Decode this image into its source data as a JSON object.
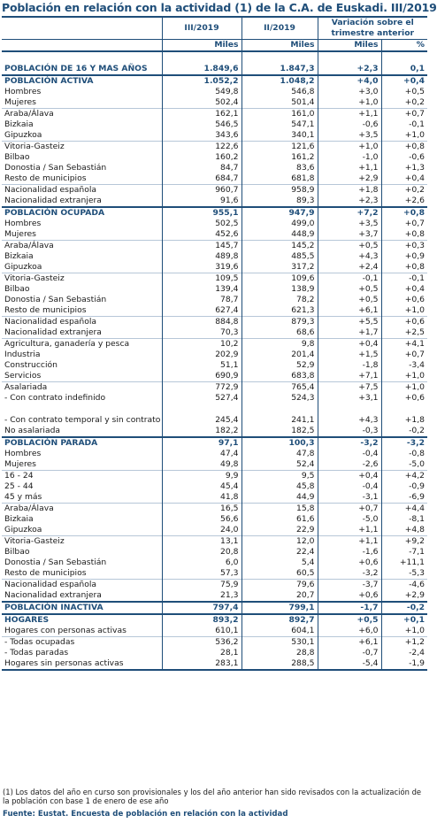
{
  "title": "Población en relación con la actividad (1) de la C.A. de Euskadi. III/2019",
  "header": {
    "col1": "III/2019",
    "col2": "II/2019",
    "col3": "Variación sobre el trimestre anterior",
    "unit1": "Miles",
    "unit2": "Miles",
    "unit3": "Miles",
    "unit4": "%"
  },
  "rows": [
    {
      "label": "POBLACIÓN DE 16 Y MAS AÑOS",
      "v1": "1.849,6",
      "v2": "1.847,3",
      "v3": "+2,3",
      "v4": "0,1"
    },
    {
      "label": "POBLACIÓN ACTIVA",
      "v1": "1.052,2",
      "v2": "1.048,2",
      "v3": "+4,0",
      "v4": "+0,4"
    },
    {
      "label": "Hombres",
      "v1": "549,8",
      "v2": "546,8",
      "v3": "+3,0",
      "v4": "+0,5"
    },
    {
      "label": "Mujeres",
      "v1": "502,4",
      "v2": "501,4",
      "v3": "+1,0",
      "v4": "+0,2"
    },
    {
      "label": "Araba/Álava",
      "v1": "162,1",
      "v2": "161,0",
      "v3": "+1,1",
      "v4": "+0,7"
    },
    {
      "label": "Bizkaia",
      "v1": "546,5",
      "v2": "547,1",
      "v3": "-0,6",
      "v4": "-0,1"
    },
    {
      "label": "Gipuzkoa",
      "v1": "343,6",
      "v2": "340,1",
      "v3": "+3,5",
      "v4": "+1,0"
    },
    {
      "label": "Vitoria-Gasteiz",
      "v1": "122,6",
      "v2": "121,6",
      "v3": "+1,0",
      "v4": "+0,8"
    },
    {
      "label": "Bilbao",
      "v1": "160,2",
      "v2": "161,2",
      "v3": "-1,0",
      "v4": "-0,6"
    },
    {
      "label": "Donostia / San Sebastián",
      "v1": "84,7",
      "v2": "83,6",
      "v3": "+1,1",
      "v4": "+1,3"
    },
    {
      "label": "Resto de municipios",
      "v1": "684,7",
      "v2": "681,8",
      "v3": "+2,9",
      "v4": "+0,4"
    },
    {
      "label": "Nacionalidad española",
      "v1": "960,7",
      "v2": "958,9",
      "v3": "+1,8",
      "v4": "+0,2"
    },
    {
      "label": "Nacionalidad extranjera",
      "v1": "91,6",
      "v2": "89,3",
      "v3": "+2,3",
      "v4": "+2,6"
    },
    {
      "label": "POBLACIÓN OCUPADA",
      "v1": "955,1",
      "v2": "947,9",
      "v3": "+7,2",
      "v4": "+0,8"
    },
    {
      "label": "Hombres",
      "v1": "502,5",
      "v2": "499,0",
      "v3": "+3,5",
      "v4": "+0,7"
    },
    {
      "label": "Mujeres",
      "v1": "452,6",
      "v2": "448,9",
      "v3": "+3,7",
      "v4": "+0,8"
    },
    {
      "label": "Araba/Álava",
      "v1": "145,7",
      "v2": "145,2",
      "v3": "+0,5",
      "v4": "+0,3"
    },
    {
      "label": "Bizkaia",
      "v1": "489,8",
      "v2": "485,5",
      "v3": "+4,3",
      "v4": "+0,9"
    },
    {
      "label": "Gipuzkoa",
      "v1": "319,6",
      "v2": "317,2",
      "v3": "+2,4",
      "v4": "+0,8"
    },
    {
      "label": "Vitoria-Gasteiz",
      "v1": "109,5",
      "v2": "109,6",
      "v3": "-0,1",
      "v4": "-0,1"
    },
    {
      "label": "Bilbao",
      "v1": "139,4",
      "v2": "138,9",
      "v3": "+0,5",
      "v4": "+0,4"
    },
    {
      "label": "Donostia / San Sebastián",
      "v1": "78,7",
      "v2": "78,2",
      "v3": "+0,5",
      "v4": "+0,6"
    },
    {
      "label": "Resto de municipios",
      "v1": "627,4",
      "v2": "621,3",
      "v3": "+6,1",
      "v4": "+1,0"
    },
    {
      "label": "Nacionalidad española",
      "v1": "884,8",
      "v2": "879,3",
      "v3": "+5,5",
      "v4": "+0,6"
    },
    {
      "label": "Nacionalidad extranjera",
      "v1": "70,3",
      "v2": "68,6",
      "v3": "+1,7",
      "v4": "+2,5"
    },
    {
      "label": "Agricultura, ganadería y pesca",
      "v1": "10,2",
      "v2": "9,8",
      "v3": "+0,4",
      "v4": "+4,1"
    },
    {
      "label": "Industria",
      "v1": "202,9",
      "v2": "201,4",
      "v3": "+1,5",
      "v4": "+0,7"
    },
    {
      "label": "Construcción",
      "v1": "51,1",
      "v2": "52,9",
      "v3": "-1,8",
      "v4": "-3,4"
    },
    {
      "label": "Servicios",
      "v1": "690,9",
      "v2": "683,8",
      "v3": "+7,1",
      "v4": "+1,0"
    },
    {
      "label": "Asalariada",
      "v1": "772,9",
      "v2": "765,4",
      "v3": "+7,5",
      "v4": "+1,0"
    },
    {
      "label": "- Con contrato indefinido",
      "v1": "527,4",
      "v2": "524,3",
      "v3": "+3,1",
      "v4": "+0,6"
    },
    {
      "label": "- Con contrato temporal y sin contrato",
      "v1": "245,4",
      "v2": "241,1",
      "v3": "+4,3",
      "v4": "+1,8"
    },
    {
      "label": "No asalariada",
      "v1": "182,2",
      "v2": "182,5",
      "v3": "-0,3",
      "v4": "-0,2"
    },
    {
      "label": "POBLACIÓN PARADA",
      "v1": "97,1",
      "v2": "100,3",
      "v3": "-3,2",
      "v4": "-3,2"
    },
    {
      "label": "Hombres",
      "v1": "47,4",
      "v2": "47,8",
      "v3": "-0,4",
      "v4": "-0,8"
    },
    {
      "label": "Mujeres",
      "v1": "49,8",
      "v2": "52,4",
      "v3": "-2,6",
      "v4": "-5,0"
    },
    {
      "label": "16 - 24",
      "v1": "9,9",
      "v2": "9,5",
      "v3": "+0,4",
      "v4": "+4,2"
    },
    {
      "label": "25 - 44",
      "v1": "45,4",
      "v2": "45,8",
      "v3": "-0,4",
      "v4": "-0,9"
    },
    {
      "label": "45 y más",
      "v1": "41,8",
      "v2": "44,9",
      "v3": "-3,1",
      "v4": "-6,9"
    },
    {
      "label": "Araba/Álava",
      "v1": "16,5",
      "v2": "15,8",
      "v3": "+0,7",
      "v4": "+4,4"
    },
    {
      "label": "Bizkaia",
      "v1": "56,6",
      "v2": "61,6",
      "v3": "-5,0",
      "v4": "-8,1"
    },
    {
      "label": "Gipuzkoa",
      "v1": "24,0",
      "v2": "22,9",
      "v3": "+1,1",
      "v4": "+4,8"
    },
    {
      "label": "Vitoria-Gasteiz",
      "v1": "13,1",
      "v2": "12,0",
      "v3": "+1,1",
      "v4": "+9,2"
    },
    {
      "label": "Bilbao",
      "v1": "20,8",
      "v2": "22,4",
      "v3": "-1,6",
      "v4": "-7,1"
    },
    {
      "label": "Donostia / San Sebastián",
      "v1": "6,0",
      "v2": "5,4",
      "v3": "+0,6",
      "v4": "+11,1"
    },
    {
      "label": "Resto de municipios",
      "v1": "57,3",
      "v2": "60,5",
      "v3": "-3,2",
      "v4": "-5,3"
    },
    {
      "label": "Nacionalidad española",
      "v1": "75,9",
      "v2": "79,6",
      "v3": "-3,7",
      "v4": "-4,6"
    },
    {
      "label": "Nacionalidad extranjera",
      "v1": "21,3",
      "v2": "20,7",
      "v3": "+0,6",
      "v4": "+2,9"
    },
    {
      "label": "POBLACIÓN INACTIVA",
      "v1": "797,4",
      "v2": "799,1",
      "v3": "-1,7",
      "v4": "-0,2"
    },
    {
      "label": "HOGARES",
      "v1": "893,2",
      "v2": "892,7",
      "v3": "+0,5",
      "v4": "+0,1"
    },
    {
      "label": "Hogares con personas activas",
      "v1": "610,1",
      "v2": "604,1",
      "v3": "+6,0",
      "v4": "+1,0"
    },
    {
      "label": "- Todas ocupadas",
      "v1": "536,2",
      "v2": "530,1",
      "v3": "+6,1",
      "v4": "+1,2"
    },
    {
      "label": "- Todas paradas",
      "v1": "28,1",
      "v2": "28,8",
      "v3": "-0,7",
      "v4": "-2,4"
    },
    {
      "label": "Hogares sin personas activas",
      "v1": "283,1",
      "v2": "288,5",
      "v3": "-5,4",
      "v4": "-1,9"
    }
  ],
  "note": "(1) Los datos del año en curso son provisionales y los del año anterior han sido revisados con la actualización de la población con base 1 de enero de ese año",
  "source": "Fuente: Eustat. Encuesta de población en relación con la actividad",
  "colors": {
    "accent": "#1f4e79",
    "separator": "#b7c7d8"
  }
}
